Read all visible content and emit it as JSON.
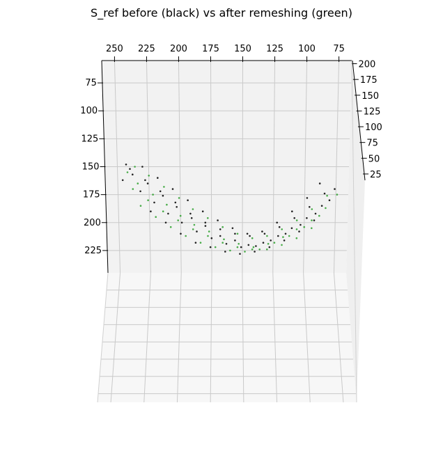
{
  "chart_data": {
    "type": "scatter",
    "projection": "3d",
    "title": "S_ref before (black) vs after remeshing (green)",
    "xlabel": "",
    "ylabel": "",
    "zlabel": "",
    "x_axis": {
      "ticks": [
        250,
        225,
        200,
        175,
        150,
        125,
        100,
        75
      ],
      "lim": [
        65,
        260
      ]
    },
    "y_axis": {
      "ticks": [
        75,
        100,
        125,
        150,
        175,
        200,
        225
      ],
      "lim": [
        55,
        245
      ]
    },
    "z_axis": {
      "ticks": [
        200,
        175,
        150,
        125,
        100,
        75,
        50,
        25
      ],
      "lim": [
        15,
        205
      ]
    },
    "grid": true,
    "legend": "none",
    "series": [
      {
        "color": "#000000",
        "values": [
          [
            243,
            148
          ],
          [
            238,
            157
          ],
          [
            226,
            165
          ],
          [
            214,
            176
          ],
          [
            203,
            186
          ],
          [
            191,
            196
          ],
          [
            180,
            203
          ],
          [
            168,
            212
          ],
          [
            156,
            216
          ],
          [
            145,
            220
          ],
          [
            133,
            218
          ],
          [
            121,
            212
          ],
          [
            110,
            205
          ],
          [
            98,
            196
          ],
          [
            86,
            185
          ],
          [
            76,
            170
          ],
          [
            246,
            162
          ],
          [
            232,
            172
          ],
          [
            221,
            182
          ],
          [
            210,
            192
          ],
          [
            199,
            200
          ],
          [
            187,
            208
          ],
          [
            175,
            214
          ],
          [
            163,
            219
          ],
          [
            151,
            222
          ],
          [
            139,
            221
          ],
          [
            127,
            216
          ],
          [
            115,
            210
          ],
          [
            103,
            202
          ],
          [
            91,
            192
          ],
          [
            80,
            180
          ],
          [
            230,
            150
          ],
          [
            218,
            160
          ],
          [
            206,
            170
          ],
          [
            194,
            180
          ],
          [
            182,
            190
          ],
          [
            170,
            198
          ],
          [
            158,
            205
          ],
          [
            146,
            210
          ],
          [
            134,
            208
          ],
          [
            122,
            200
          ],
          [
            110,
            190
          ],
          [
            98,
            178
          ],
          [
            88,
            165
          ],
          [
            224,
            190
          ],
          [
            212,
            200
          ],
          [
            200,
            210
          ],
          [
            188,
            218
          ],
          [
            176,
            222
          ],
          [
            164,
            226
          ],
          [
            152,
            228
          ],
          [
            140,
            226
          ],
          [
            128,
            222
          ],
          [
            116,
            216
          ],
          [
            104,
            208
          ],
          [
            92,
            198
          ],
          [
            240,
            152
          ],
          [
            228,
            162
          ],
          [
            216,
            172
          ],
          [
            204,
            182
          ],
          [
            192,
            192
          ],
          [
            180,
            200
          ],
          [
            168,
            206
          ],
          [
            156,
            210
          ],
          [
            144,
            212
          ],
          [
            132,
            210
          ],
          [
            120,
            204
          ],
          [
            108,
            196
          ],
          [
            96,
            186
          ],
          [
            84,
            174
          ]
        ]
      },
      {
        "color": "#2ca02c",
        "values": [
          [
            242,
            155
          ],
          [
            234,
            165
          ],
          [
            222,
            175
          ],
          [
            211,
            184
          ],
          [
            200,
            194
          ],
          [
            189,
            202
          ],
          [
            177,
            208
          ],
          [
            165,
            215
          ],
          [
            153,
            219
          ],
          [
            141,
            222
          ],
          [
            129,
            219
          ],
          [
            117,
            213
          ],
          [
            106,
            206
          ],
          [
            94,
            198
          ],
          [
            83,
            187
          ],
          [
            74,
            175
          ],
          [
            236,
            150
          ],
          [
            225,
            158
          ],
          [
            213,
            168
          ],
          [
            201,
            178
          ],
          [
            190,
            188
          ],
          [
            178,
            196
          ],
          [
            166,
            204
          ],
          [
            154,
            210
          ],
          [
            142,
            214
          ],
          [
            130,
            212
          ],
          [
            118,
            206
          ],
          [
            106,
            198
          ],
          [
            94,
            188
          ],
          [
            82,
            176
          ],
          [
            232,
            185
          ],
          [
            220,
            195
          ],
          [
            208,
            204
          ],
          [
            196,
            212
          ],
          [
            184,
            218
          ],
          [
            172,
            222
          ],
          [
            160,
            225
          ],
          [
            148,
            226
          ],
          [
            136,
            224
          ],
          [
            124,
            218
          ],
          [
            112,
            212
          ],
          [
            100,
            204
          ],
          [
            88,
            194
          ],
          [
            238,
            170
          ],
          [
            226,
            180
          ],
          [
            214,
            190
          ],
          [
            202,
            198
          ],
          [
            190,
            206
          ],
          [
            178,
            212
          ],
          [
            166,
            218
          ],
          [
            154,
            222
          ],
          [
            142,
            224
          ],
          [
            130,
            224
          ],
          [
            118,
            220
          ],
          [
            106,
            214
          ],
          [
            94,
            205
          ]
        ]
      }
    ]
  }
}
